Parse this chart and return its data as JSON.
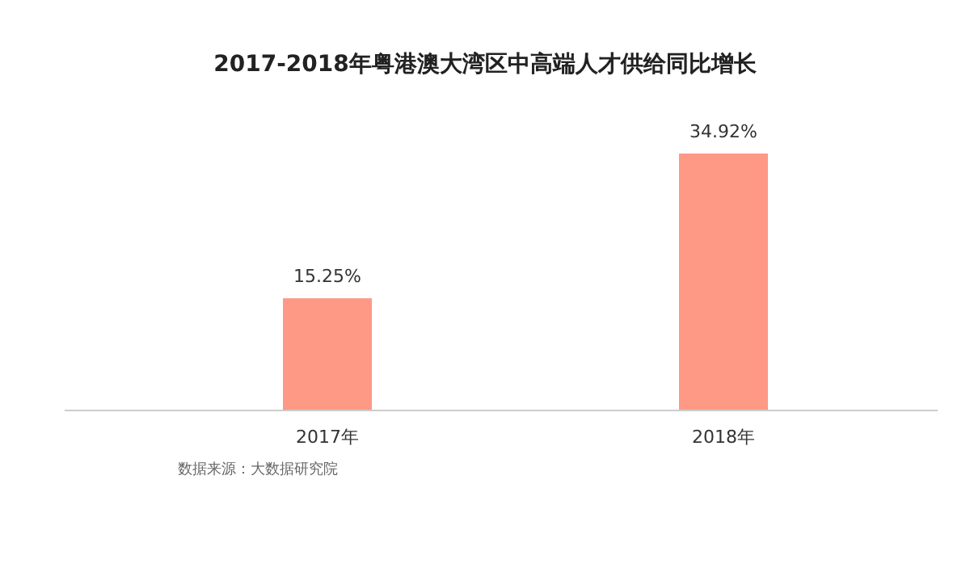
{
  "chart_data": {
    "type": "bar",
    "title": "2017-2018年粤港澳大湾区中高端人才供给同比增长",
    "categories": [
      "2017年",
      "2018年"
    ],
    "values": [
      15.25,
      34.92
    ],
    "value_labels": [
      "15.25%",
      "34.92%"
    ],
    "color": "#fe9986",
    "annotations": [
      "数据来源：大数据研究院"
    ]
  }
}
